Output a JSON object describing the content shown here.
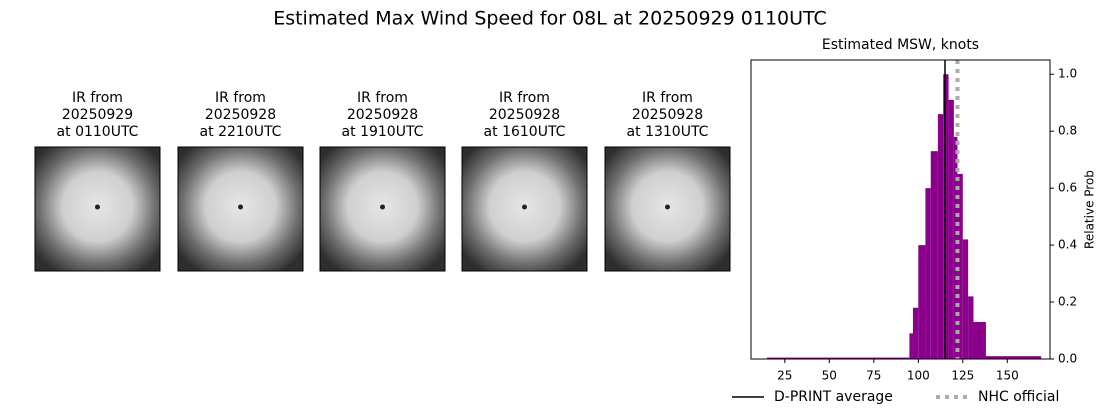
{
  "title": "Estimated Max Wind Speed for 08L at 20250929 0110UTC",
  "panels": [
    {
      "label": [
        "IR from",
        "20250929",
        "at 0110UTC"
      ]
    },
    {
      "label": [
        "IR from",
        "20250928",
        "at 2210UTC"
      ]
    },
    {
      "label": [
        "IR from",
        "20250928",
        "at 1910UTC"
      ]
    },
    {
      "label": [
        "IR from",
        "20250928",
        "at 1610UTC"
      ]
    },
    {
      "label": [
        "IR from",
        "20250928",
        "at 1310UTC"
      ]
    }
  ],
  "chart_data": {
    "type": "histogram",
    "title": "Estimated MSW, knots",
    "y_label": "Relative Prob",
    "bins": [
      15,
      95,
      97,
      100,
      104,
      107,
      111,
      114,
      117,
      120,
      122,
      125,
      128,
      131,
      138,
      169
    ],
    "values": [
      0.005,
      0.09,
      0.18,
      0.4,
      0.6,
      0.73,
      0.86,
      1.0,
      0.91,
      0.78,
      0.65,
      0.42,
      0.22,
      0.13,
      0.01
    ],
    "color": "#8b008b",
    "xlim": [
      6,
      174
    ],
    "ylim": [
      0,
      1.05
    ],
    "xticks": [
      25,
      50,
      75,
      100,
      125,
      150
    ],
    "yticks": [
      {
        "value": 0,
        "label": "0.0"
      },
      {
        "value": 0.2,
        "label": "0.2"
      },
      {
        "value": 0.4,
        "label": "0.4"
      },
      {
        "value": 0.6,
        "label": "0.6"
      },
      {
        "value": 0.8,
        "label": "0.8"
      },
      {
        "value": 1.0,
        "label": "1.0"
      }
    ],
    "vlines": [
      {
        "name": "D-PRINT average",
        "value": 115,
        "color": "#000000",
        "style": "solid"
      },
      {
        "name": "NHC official",
        "value": 122,
        "color": "#aaaaaa",
        "style": "dotted"
      }
    ]
  }
}
